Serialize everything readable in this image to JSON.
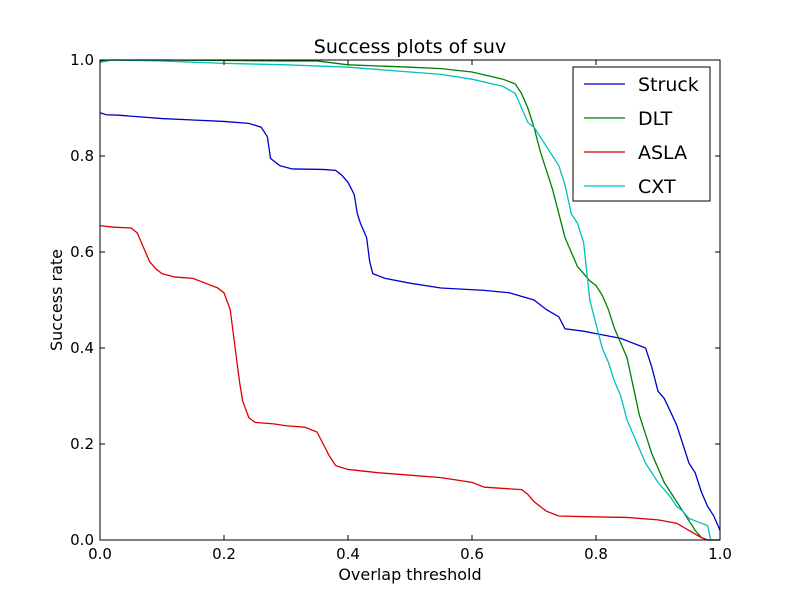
{
  "chart_data": {
    "type": "line",
    "title": "Success plots of suv",
    "xlabel": "Overlap threshold",
    "ylabel": "Success rate",
    "xlim": [
      0,
      1
    ],
    "ylim": [
      0,
      1
    ],
    "xticks": [
      "0.0",
      "0.2",
      "0.4",
      "0.6",
      "0.8",
      "1.0"
    ],
    "yticks": [
      "0.0",
      "0.2",
      "0.4",
      "0.6",
      "0.8",
      "1.0"
    ],
    "grid": false,
    "legend_position": "top-right",
    "series": [
      {
        "name": "Struck",
        "color": "#0000cc",
        "points": [
          [
            0,
            0.89
          ],
          [
            0.01,
            0.886
          ],
          [
            0.03,
            0.885
          ],
          [
            0.06,
            0.882
          ],
          [
            0.1,
            0.878
          ],
          [
            0.15,
            0.875
          ],
          [
            0.2,
            0.872
          ],
          [
            0.24,
            0.868
          ],
          [
            0.26,
            0.86
          ],
          [
            0.27,
            0.84
          ],
          [
            0.275,
            0.795
          ],
          [
            0.29,
            0.78
          ],
          [
            0.31,
            0.773
          ],
          [
            0.36,
            0.772
          ],
          [
            0.38,
            0.77
          ],
          [
            0.39,
            0.76
          ],
          [
            0.4,
            0.745
          ],
          [
            0.41,
            0.72
          ],
          [
            0.415,
            0.68
          ],
          [
            0.42,
            0.66
          ],
          [
            0.43,
            0.63
          ],
          [
            0.435,
            0.58
          ],
          [
            0.44,
            0.555
          ],
          [
            0.46,
            0.545
          ],
          [
            0.5,
            0.535
          ],
          [
            0.55,
            0.525
          ],
          [
            0.62,
            0.52
          ],
          [
            0.66,
            0.515
          ],
          [
            0.7,
            0.5
          ],
          [
            0.72,
            0.48
          ],
          [
            0.74,
            0.465
          ],
          [
            0.75,
            0.44
          ],
          [
            0.78,
            0.435
          ],
          [
            0.8,
            0.43
          ],
          [
            0.84,
            0.42
          ],
          [
            0.87,
            0.405
          ],
          [
            0.88,
            0.4
          ],
          [
            0.89,
            0.36
          ],
          [
            0.9,
            0.31
          ],
          [
            0.91,
            0.295
          ],
          [
            0.93,
            0.24
          ],
          [
            0.94,
            0.2
          ],
          [
            0.95,
            0.16
          ],
          [
            0.96,
            0.14
          ],
          [
            0.97,
            0.1
          ],
          [
            0.98,
            0.07
          ],
          [
            0.99,
            0.05
          ],
          [
            1.0,
            0.02
          ]
        ]
      },
      {
        "name": "DLT",
        "color": "#007f00",
        "points": [
          [
            0,
            0.998
          ],
          [
            0.02,
            1.0
          ],
          [
            0.1,
            1.0
          ],
          [
            0.2,
            0.999
          ],
          [
            0.3,
            0.998
          ],
          [
            0.35,
            0.998
          ],
          [
            0.4,
            0.99
          ],
          [
            0.5,
            0.985
          ],
          [
            0.55,
            0.982
          ],
          [
            0.6,
            0.975
          ],
          [
            0.65,
            0.96
          ],
          [
            0.67,
            0.95
          ],
          [
            0.68,
            0.93
          ],
          [
            0.69,
            0.9
          ],
          [
            0.7,
            0.86
          ],
          [
            0.71,
            0.81
          ],
          [
            0.72,
            0.77
          ],
          [
            0.73,
            0.73
          ],
          [
            0.74,
            0.68
          ],
          [
            0.75,
            0.63
          ],
          [
            0.76,
            0.6
          ],
          [
            0.77,
            0.57
          ],
          [
            0.78,
            0.555
          ],
          [
            0.79,
            0.54
          ],
          [
            0.8,
            0.53
          ],
          [
            0.81,
            0.51
          ],
          [
            0.82,
            0.48
          ],
          [
            0.83,
            0.44
          ],
          [
            0.84,
            0.41
          ],
          [
            0.85,
            0.38
          ],
          [
            0.86,
            0.32
          ],
          [
            0.87,
            0.26
          ],
          [
            0.88,
            0.22
          ],
          [
            0.89,
            0.18
          ],
          [
            0.9,
            0.15
          ],
          [
            0.91,
            0.12
          ],
          [
            0.92,
            0.1
          ],
          [
            0.93,
            0.08
          ],
          [
            0.94,
            0.06
          ],
          [
            0.95,
            0.04
          ],
          [
            0.96,
            0.02
          ],
          [
            0.97,
            0.005
          ],
          [
            0.98,
            0.0
          ],
          [
            1.0,
            0.0
          ]
        ]
      },
      {
        "name": "ASLA",
        "color": "#dd0000",
        "points": [
          [
            0,
            0.655
          ],
          [
            0.02,
            0.652
          ],
          [
            0.05,
            0.65
          ],
          [
            0.06,
            0.64
          ],
          [
            0.07,
            0.61
          ],
          [
            0.08,
            0.58
          ],
          [
            0.09,
            0.565
          ],
          [
            0.1,
            0.555
          ],
          [
            0.12,
            0.548
          ],
          [
            0.15,
            0.545
          ],
          [
            0.17,
            0.535
          ],
          [
            0.19,
            0.525
          ],
          [
            0.2,
            0.515
          ],
          [
            0.21,
            0.48
          ],
          [
            0.215,
            0.43
          ],
          [
            0.22,
            0.38
          ],
          [
            0.225,
            0.33
          ],
          [
            0.23,
            0.29
          ],
          [
            0.24,
            0.255
          ],
          [
            0.25,
            0.245
          ],
          [
            0.28,
            0.242
          ],
          [
            0.3,
            0.238
          ],
          [
            0.33,
            0.235
          ],
          [
            0.35,
            0.225
          ],
          [
            0.36,
            0.2
          ],
          [
            0.37,
            0.175
          ],
          [
            0.38,
            0.155
          ],
          [
            0.4,
            0.147
          ],
          [
            0.45,
            0.14
          ],
          [
            0.5,
            0.135
          ],
          [
            0.55,
            0.13
          ],
          [
            0.6,
            0.12
          ],
          [
            0.62,
            0.11
          ],
          [
            0.68,
            0.105
          ],
          [
            0.69,
            0.095
          ],
          [
            0.7,
            0.08
          ],
          [
            0.72,
            0.06
          ],
          [
            0.74,
            0.05
          ],
          [
            0.8,
            0.048
          ],
          [
            0.85,
            0.047
          ],
          [
            0.9,
            0.042
          ],
          [
            0.93,
            0.035
          ],
          [
            0.95,
            0.02
          ],
          [
            0.97,
            0.005
          ],
          [
            0.98,
            0.0
          ],
          [
            1.0,
            0.0
          ]
        ]
      },
      {
        "name": "CXT",
        "color": "#00bfbf",
        "points": [
          [
            0,
            0.995
          ],
          [
            0.02,
            1.0
          ],
          [
            0.1,
            0.998
          ],
          [
            0.2,
            0.993
          ],
          [
            0.3,
            0.99
          ],
          [
            0.4,
            0.985
          ],
          [
            0.5,
            0.975
          ],
          [
            0.55,
            0.97
          ],
          [
            0.6,
            0.96
          ],
          [
            0.65,
            0.945
          ],
          [
            0.67,
            0.93
          ],
          [
            0.68,
            0.9
          ],
          [
            0.69,
            0.87
          ],
          [
            0.7,
            0.86
          ],
          [
            0.71,
            0.84
          ],
          [
            0.72,
            0.82
          ],
          [
            0.73,
            0.8
          ],
          [
            0.74,
            0.78
          ],
          [
            0.75,
            0.74
          ],
          [
            0.76,
            0.68
          ],
          [
            0.77,
            0.66
          ],
          [
            0.78,
            0.62
          ],
          [
            0.785,
            0.56
          ],
          [
            0.79,
            0.5
          ],
          [
            0.8,
            0.45
          ],
          [
            0.81,
            0.4
          ],
          [
            0.82,
            0.37
          ],
          [
            0.83,
            0.33
          ],
          [
            0.84,
            0.3
          ],
          [
            0.85,
            0.25
          ],
          [
            0.86,
            0.22
          ],
          [
            0.87,
            0.19
          ],
          [
            0.88,
            0.16
          ],
          [
            0.9,
            0.12
          ],
          [
            0.92,
            0.09
          ],
          [
            0.93,
            0.07
          ],
          [
            0.94,
            0.06
          ],
          [
            0.95,
            0.045
          ],
          [
            0.96,
            0.04
          ],
          [
            0.97,
            0.035
          ],
          [
            0.98,
            0.03
          ],
          [
            0.985,
            0.0
          ],
          [
            1.0,
            0.0
          ]
        ]
      }
    ]
  }
}
